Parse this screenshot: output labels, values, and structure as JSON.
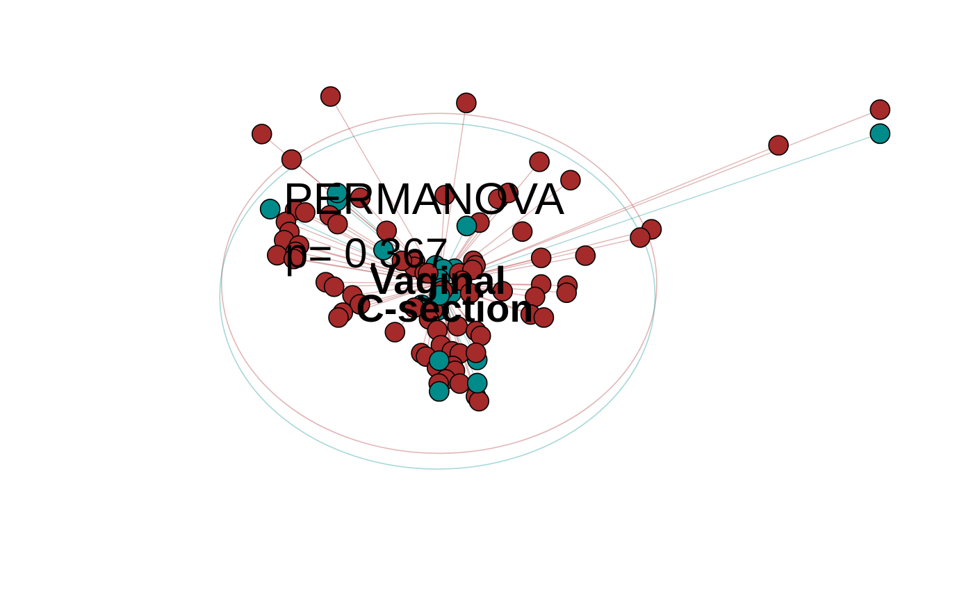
{
  "chart_data": {
    "type": "scatter",
    "title": "",
    "xlabel": "",
    "ylabel": "",
    "xlim": [
      -1.0,
      1.0
    ],
    "ylim": [
      -0.8,
      0.8
    ],
    "annotation": {
      "title": "PERMANOVA",
      "p_label": "p= 0.367"
    },
    "colors": {
      "Vaginal": "#a52a2a",
      "C-section": "#008b8b",
      "outline": "#000000"
    },
    "series": [
      {
        "name": "Vaginal",
        "centroid": [
          0.003,
          0.004
        ],
        "ellipse": {
          "center": [
            0.003,
            0.004
          ],
          "rx": 0.497,
          "ry": 0.453,
          "angle": 0
        },
        "points": [
          [
            -0.245,
            0.502
          ],
          [
            0.065,
            0.485
          ],
          [
            1.01,
            0.467
          ],
          [
            -0.402,
            0.402
          ],
          [
            -0.334,
            0.334
          ],
          [
            0.232,
            0.328
          ],
          [
            0.778,
            0.372
          ],
          [
            0.303,
            0.279
          ],
          [
            0.016,
            0.239
          ],
          [
            0.138,
            0.229
          ],
          [
            0.161,
            0.245
          ],
          [
            -0.177,
            0.232
          ],
          [
            -0.326,
            0.199
          ],
          [
            -0.303,
            0.193
          ],
          [
            -0.247,
            0.185
          ],
          [
            -0.229,
            0.162
          ],
          [
            -0.347,
            0.168
          ],
          [
            -0.339,
            0.141
          ],
          [
            -0.351,
            0.119
          ],
          [
            -0.117,
            0.144
          ],
          [
            0.095,
            0.166
          ],
          [
            0.193,
            0.142
          ],
          [
            0.488,
            0.148
          ],
          [
            0.462,
            0.126
          ],
          [
            -0.317,
            0.105
          ],
          [
            -0.367,
            0.079
          ],
          [
            -0.325,
            0.088
          ],
          [
            0.337,
            0.078
          ],
          [
            0.236,
            0.072
          ],
          [
            -0.329,
            0.069
          ],
          [
            0.081,
            0.064
          ],
          [
            -0.052,
            0.062
          ],
          [
            0.086,
            0.052
          ],
          [
            -0.054,
            0.048
          ],
          [
            -0.082,
            0.064
          ],
          [
            -0.03,
            0.032
          ],
          [
            0.049,
            0.031
          ],
          [
            0.079,
            0.04
          ],
          [
            0.055,
            0.011
          ],
          [
            -0.022,
            0.031
          ],
          [
            -0.256,
            0.007
          ],
          [
            -0.237,
            -0.005
          ],
          [
            0.236,
            0.001
          ],
          [
            0.296,
            -0.002
          ],
          [
            0.294,
            -0.021
          ],
          [
            -0.195,
            -0.028
          ],
          [
            0.011,
            -0.015
          ],
          [
            0.074,
            -0.022
          ],
          [
            0.148,
            -0.017
          ],
          [
            0.222,
            -0.032
          ],
          [
            -0.178,
            -0.052
          ],
          [
            -0.217,
            -0.074
          ],
          [
            -0.227,
            -0.087
          ],
          [
            -0.054,
            -0.061
          ],
          [
            -0.011,
            -0.067
          ],
          [
            0.212,
            -0.079
          ],
          [
            0.242,
            -0.087
          ],
          [
            -0.02,
            -0.092
          ],
          [
            0.045,
            -0.11
          ],
          [
            -0.098,
            -0.126
          ],
          [
            -0.001,
            -0.121
          ],
          [
            0.087,
            -0.123
          ],
          [
            0.098,
            -0.136
          ],
          [
            0.007,
            -0.161
          ],
          [
            -0.038,
            -0.182
          ],
          [
            -0.027,
            -0.191
          ],
          [
            0.032,
            -0.177
          ],
          [
            0.05,
            -0.183
          ],
          [
            0.087,
            -0.181
          ],
          [
            -0.002,
            -0.221
          ],
          [
            0.034,
            -0.216
          ],
          [
            0.039,
            -0.229
          ],
          [
            0.018,
            -0.252
          ],
          [
            0.05,
            -0.263
          ],
          [
            0.002,
            -0.263
          ],
          [
            0.087,
            -0.297
          ],
          [
            0.094,
            -0.31
          ]
        ]
      },
      {
        "name": "C-section",
        "centroid": [
          0.0,
          0.0
        ],
        "ellipse": {
          "center": [
            -0.001,
            -0.03
          ],
          "rx": 0.497,
          "ry": 0.461,
          "angle": 0
        },
        "points": [
          [
            1.01,
            0.403
          ],
          [
            -0.383,
            0.202
          ],
          [
            -0.23,
            0.245
          ],
          [
            -0.23,
            0.224
          ],
          [
            0.066,
            0.157
          ],
          [
            -0.124,
            0.093
          ],
          [
            0.038,
            0.043
          ],
          [
            -0.005,
            0.052
          ],
          [
            0.012,
            0.042
          ],
          [
            0.004,
            0.015
          ],
          [
            0.031,
            -0.022
          ],
          [
            0.008,
            -0.009
          ],
          [
            -0.037,
            -0.053
          ],
          [
            0.004,
            -0.028
          ],
          [
            0.002,
            -0.067
          ],
          [
            0.09,
            -0.2
          ],
          [
            0.003,
            -0.202
          ],
          [
            0.09,
            -0.262
          ],
          [
            0.003,
            -0.284
          ]
        ]
      }
    ],
    "group_labels": [
      {
        "text": "Vaginal",
        "series": "Vaginal"
      },
      {
        "text": "C-section",
        "series": "C-section"
      }
    ]
  }
}
